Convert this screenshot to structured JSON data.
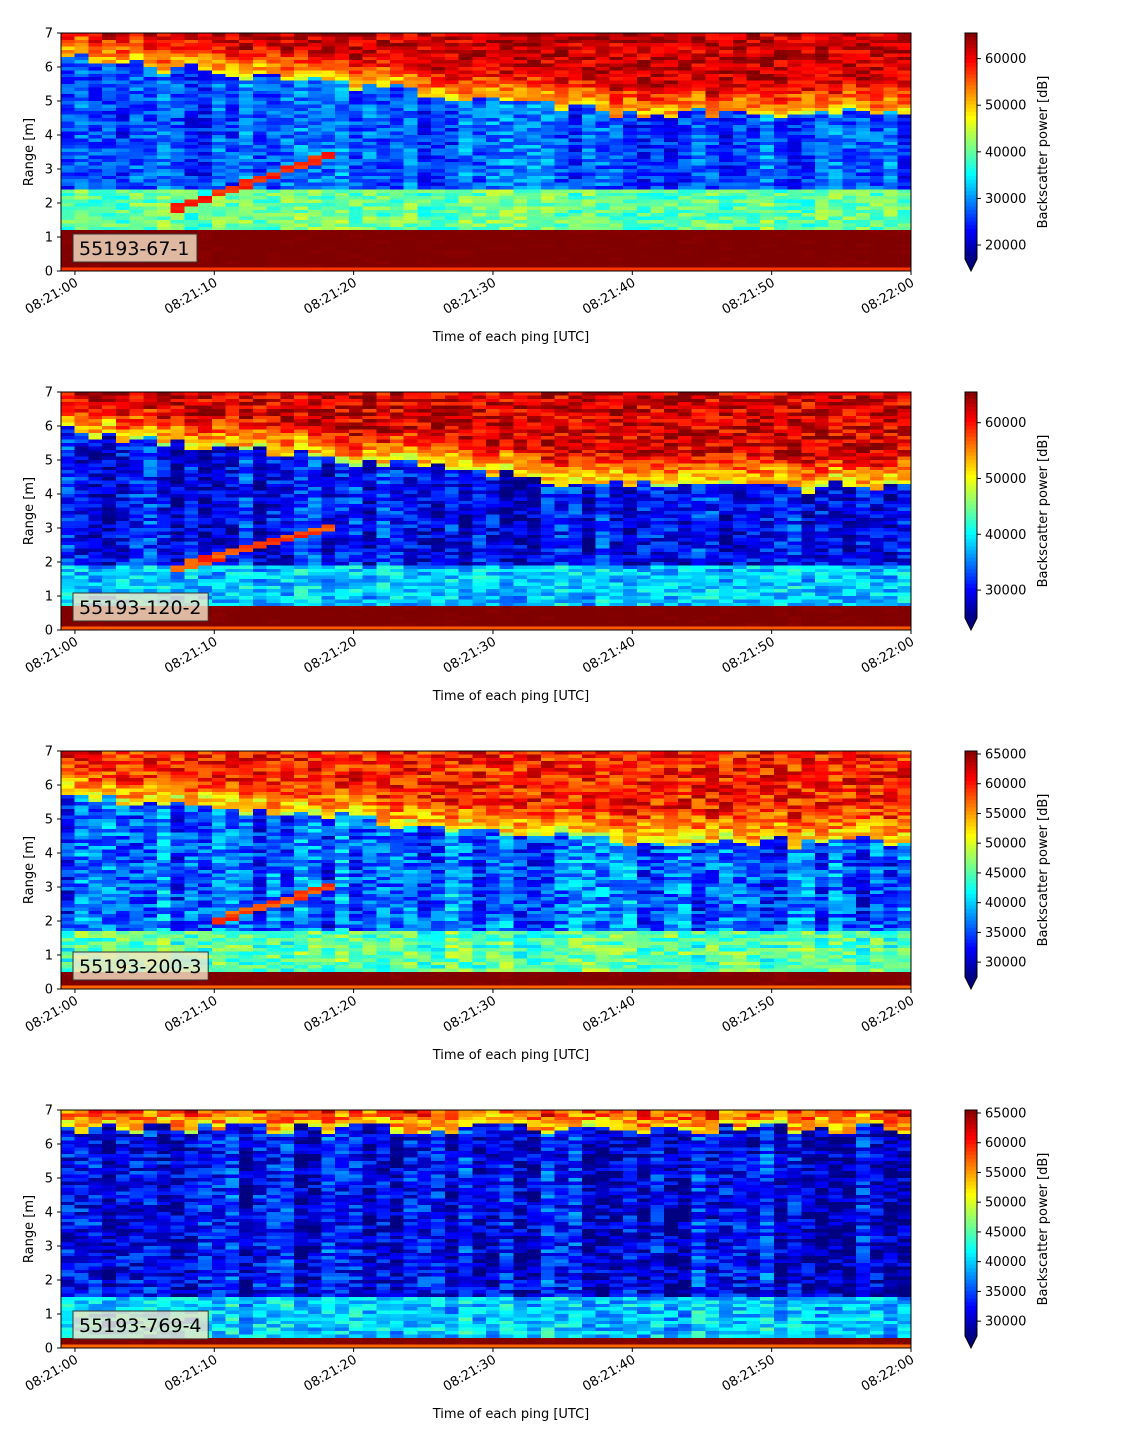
{
  "chart_data": [
    {
      "type": "heatmap",
      "label": "55193-67-1",
      "xlabel": "Time of each ping [UTC]",
      "ylabel": "Range [m]",
      "colorbar_label": "Backscatter power [dB]",
      "colormap": "jet",
      "x_ticks": [
        "08:21:00",
        "08:21:10",
        "08:21:20",
        "08:21:30",
        "08:21:40",
        "08:21:50",
        "08:22:00"
      ],
      "x_range": [
        "08:20:59",
        "08:22:00"
      ],
      "y_ticks": [
        "0",
        "1",
        "2",
        "3",
        "4",
        "5",
        "6",
        "7"
      ],
      "ylim": [
        0,
        7
      ],
      "cbar_ticks": [
        "20000",
        "30000",
        "40000",
        "50000",
        "60000"
      ],
      "clim": [
        17000,
        65500
      ],
      "profile": {
        "bottom_band": [
          0.15,
          1.2
        ],
        "bottom_value": 65000,
        "surface_start": 6.3,
        "surface_end": 4.6,
        "surface_transition_time": "08:21:40",
        "surface_value": 60000,
        "water_value": 27000,
        "near_bottom_value": 40000,
        "target_track": {
          "start_time": "08:21:07",
          "end_time": "08:21:19",
          "start_range": 1.8,
          "end_range": 3.5
        }
      }
    },
    {
      "type": "heatmap",
      "label": "55193-120-2",
      "xlabel": "Time of each ping [UTC]",
      "ylabel": "Range [m]",
      "colorbar_label": "Backscatter power [dB]",
      "colormap": "jet",
      "x_ticks": [
        "08:21:00",
        "08:21:10",
        "08:21:20",
        "08:21:30",
        "08:21:40",
        "08:21:50",
        "08:22:00"
      ],
      "x_range": [
        "08:20:59",
        "08:22:00"
      ],
      "y_ticks": [
        "0",
        "1",
        "2",
        "3",
        "4",
        "5",
        "6",
        "7"
      ],
      "ylim": [
        0,
        7
      ],
      "cbar_ticks": [
        "30000",
        "40000",
        "50000",
        "60000"
      ],
      "clim": [
        25000,
        65500
      ],
      "profile": {
        "bottom_band": [
          0.1,
          0.7
        ],
        "bottom_value": 65000,
        "surface_start": 5.8,
        "surface_end": 4.2,
        "surface_transition_time": "08:21:40",
        "surface_value": 60000,
        "water_value": 30000,
        "near_bottom_value": 38000,
        "target_track": {
          "start_time": "08:21:07",
          "end_time": "08:21:19",
          "start_range": 1.8,
          "end_range": 3.1
        }
      }
    },
    {
      "type": "heatmap",
      "label": "55193-200-3",
      "xlabel": "Time of each ping [UTC]",
      "ylabel": "Range [m]",
      "colorbar_label": "Backscatter power [dB]",
      "colormap": "jet",
      "x_ticks": [
        "08:21:00",
        "08:21:10",
        "08:21:20",
        "08:21:30",
        "08:21:40",
        "08:21:50",
        "08:22:00"
      ],
      "x_range": [
        "08:20:59",
        "08:22:00"
      ],
      "y_ticks": [
        "0",
        "1",
        "2",
        "3",
        "4",
        "5",
        "6",
        "7"
      ],
      "ylim": [
        0,
        7
      ],
      "cbar_ticks": [
        "30000",
        "35000",
        "40000",
        "45000",
        "50000",
        "55000",
        "60000",
        "65000"
      ],
      "clim": [
        27500,
        65500
      ],
      "profile": {
        "bottom_band": [
          0.15,
          0.5
        ],
        "bottom_value": 65000,
        "surface_start": 5.7,
        "surface_end": 4.3,
        "surface_transition_time": "08:21:40",
        "surface_value": 58000,
        "water_value": 36000,
        "near_bottom_value": 45000,
        "target_track": {
          "start_time": "08:21:10",
          "end_time": "08:21:19",
          "start_range": 2.0,
          "end_range": 3.1
        }
      }
    },
    {
      "type": "heatmap",
      "label": "55193-769-4",
      "xlabel": "Time of each ping [UTC]",
      "ylabel": "Range [m]",
      "colorbar_label": "Backscatter power [dB]",
      "colormap": "jet",
      "x_ticks": [
        "08:21:00",
        "08:21:10",
        "08:21:20",
        "08:21:30",
        "08:21:40",
        "08:21:50",
        "08:22:00"
      ],
      "x_range": [
        "08:20:59",
        "08:22:00"
      ],
      "y_ticks": [
        "0",
        "1",
        "2",
        "3",
        "4",
        "5",
        "6",
        "7"
      ],
      "ylim": [
        0,
        7
      ],
      "cbar_ticks": [
        "30000",
        "35000",
        "40000",
        "45000",
        "50000",
        "55000",
        "60000",
        "65000"
      ],
      "clim": [
        27500,
        65500
      ],
      "profile": {
        "bottom_band": [
          0.15,
          0.35
        ],
        "bottom_value": 65000,
        "surface_start": 6.45,
        "surface_end": 6.45,
        "surface_transition_time": "08:21:40",
        "surface_value": 62000,
        "water_value": 32000,
        "near_bottom_value": 40000,
        "target_track": null
      }
    }
  ]
}
